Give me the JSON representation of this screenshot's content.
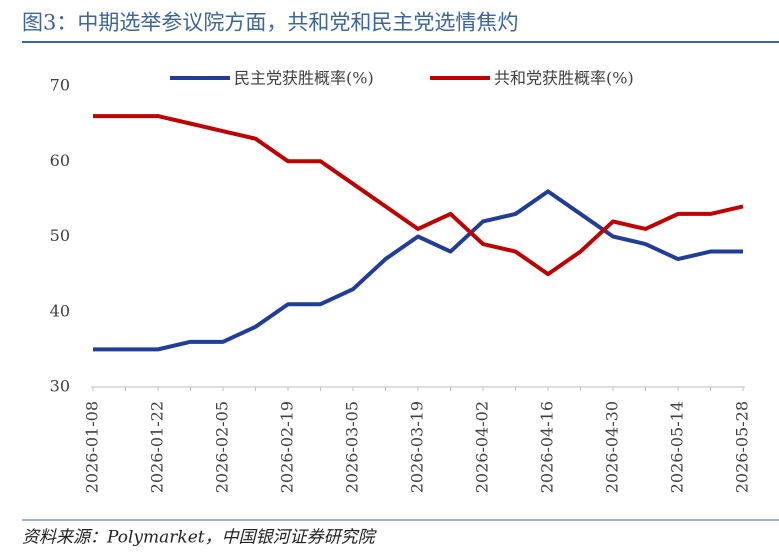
{
  "chart_data": {
    "type": "line",
    "title": "图3：中期选举参议院方面，共和党和民主党选情焦灼",
    "source": "资料来源：Polymarket，中国银河证券研究院",
    "categories": [
      "2026-01-08",
      null,
      "2026-01-22",
      null,
      "2026-02-05",
      null,
      "2026-02-19",
      null,
      "2026-03-05",
      null,
      "2026-03-19",
      null,
      "2026-04-02",
      null,
      "2026-04-16",
      null,
      "2026-04-30",
      null,
      "2026-05-14",
      null,
      "2026-05-28"
    ],
    "series": [
      {
        "name": "民主党获胜概率(%)",
        "color": "#1f3d99",
        "values": [
          35,
          35,
          35,
          36,
          36,
          38,
          41,
          41,
          43,
          47,
          50,
          48,
          52,
          53,
          56,
          53,
          50,
          49,
          47,
          48,
          48
        ]
      },
      {
        "name": "共和党获胜概率(%)",
        "color": "#c00000",
        "values": [
          66,
          66,
          66,
          65,
          64,
          63,
          60,
          60,
          57,
          54,
          51,
          53,
          49,
          48,
          45,
          48,
          52,
          51,
          53,
          53,
          54
        ]
      }
    ],
    "ylim": [
      30,
      70
    ],
    "yticks": [
      30,
      40,
      50,
      60,
      70
    ],
    "grid": false,
    "legend": "top"
  }
}
